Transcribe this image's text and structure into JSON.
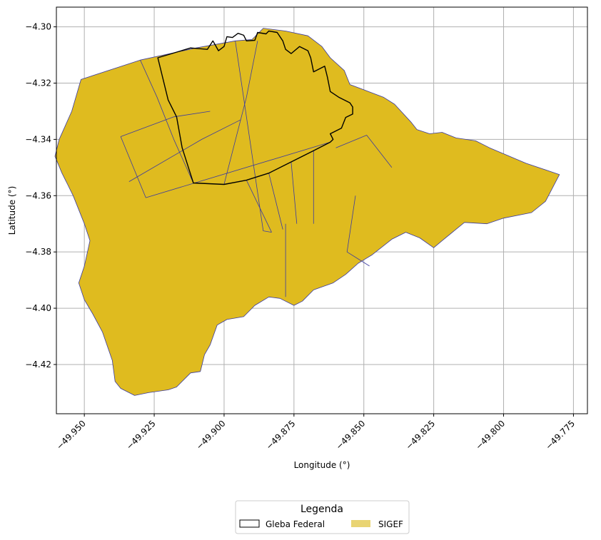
{
  "map": {
    "xlabel": "Longitude (°)",
    "ylabel": "Latitude (°)",
    "xlim": [
      -49.96,
      -49.77
    ],
    "ylim": [
      -4.4375,
      -4.293
    ],
    "xticks": [
      -49.95,
      -49.925,
      -49.9,
      -49.875,
      -49.85,
      -49.825,
      -49.8,
      -49.775
    ],
    "xtick_labels": [
      "−49.950",
      "−49.925",
      "−49.900",
      "−49.875",
      "−49.850",
      "−49.825",
      "−49.800",
      "−49.775"
    ],
    "yticks": [
      -4.3,
      -4.32,
      -4.34,
      -4.36,
      -4.38,
      -4.4,
      -4.42
    ],
    "ytick_labels": [
      "−4.30",
      "−4.32",
      "−4.34",
      "−4.36",
      "−4.38",
      "−4.40",
      "−4.42"
    ],
    "grid": true,
    "colors": {
      "sigef_fill": "#dfbb1f",
      "sigef_edge": "#3a3aa0",
      "gleba_edge": "#000000",
      "legend_sigef_swatch": "#e9d473"
    }
  },
  "legend": {
    "title": "Legenda",
    "placement": "bottom-center",
    "entries": [
      {
        "label": "Gleba Federal",
        "style": "outline"
      },
      {
        "label": "SIGEF",
        "style": "filled"
      }
    ]
  },
  "layers": {
    "sigef_boundary": [
      [
        -49.9512,
        -4.3187
      ],
      [
        -49.93,
        -4.3118
      ],
      [
        -49.91,
        -4.3075
      ],
      [
        -49.896,
        -4.305
      ],
      [
        -49.89,
        -4.3045
      ],
      [
        -49.886,
        -4.3005
      ],
      [
        -49.878,
        -4.3015
      ],
      [
        -49.87,
        -4.3032
      ],
      [
        -49.865,
        -4.307
      ],
      [
        -49.862,
        -4.311
      ],
      [
        -49.857,
        -4.3155
      ],
      [
        -49.855,
        -4.3205
      ],
      [
        -49.843,
        -4.325
      ],
      [
        -49.839,
        -4.3275
      ],
      [
        -49.833,
        -4.334
      ],
      [
        -49.831,
        -4.3365
      ],
      [
        -49.8265,
        -4.338
      ],
      [
        -49.822,
        -4.3375
      ],
      [
        -49.817,
        -4.3395
      ],
      [
        -49.81,
        -4.3405
      ],
      [
        -49.805,
        -4.343
      ],
      [
        -49.792,
        -4.3485
      ],
      [
        -49.78,
        -4.3525
      ],
      [
        -49.785,
        -4.362
      ],
      [
        -49.79,
        -4.366
      ],
      [
        -49.8,
        -4.368
      ],
      [
        -49.806,
        -4.37
      ],
      [
        -49.814,
        -4.3695
      ],
      [
        -49.822,
        -4.376
      ],
      [
        -49.825,
        -4.3785
      ],
      [
        -49.83,
        -4.375
      ],
      [
        -49.835,
        -4.373
      ],
      [
        -49.84,
        -4.3755
      ],
      [
        -49.847,
        -4.381
      ],
      [
        -49.852,
        -4.384
      ],
      [
        -49.8565,
        -4.388
      ],
      [
        -49.861,
        -4.391
      ],
      [
        -49.868,
        -4.3935
      ],
      [
        -49.872,
        -4.3975
      ],
      [
        -49.875,
        -4.399
      ],
      [
        -49.88,
        -4.3965
      ],
      [
        -49.884,
        -4.396
      ],
      [
        -49.889,
        -4.399
      ],
      [
        -49.893,
        -4.403
      ],
      [
        -49.899,
        -4.404
      ],
      [
        -49.9025,
        -4.406
      ],
      [
        -49.905,
        -4.413
      ],
      [
        -49.907,
        -4.4165
      ],
      [
        -49.9085,
        -4.4225
      ],
      [
        -49.912,
        -4.423
      ],
      [
        -49.917,
        -4.428
      ],
      [
        -49.92,
        -4.429
      ],
      [
        -49.927,
        -4.43
      ],
      [
        -49.932,
        -4.431
      ],
      [
        -49.937,
        -4.4285
      ],
      [
        -49.939,
        -4.426
      ],
      [
        -49.94,
        -4.4185
      ],
      [
        -49.9435,
        -4.4085
      ],
      [
        -49.947,
        -4.402
      ],
      [
        -49.95,
        -4.397
      ],
      [
        -49.952,
        -4.391
      ],
      [
        -49.95,
        -4.385
      ],
      [
        -49.948,
        -4.376
      ],
      [
        -49.95,
        -4.37
      ],
      [
        -49.954,
        -4.36
      ],
      [
        -49.956,
        -4.356
      ],
      [
        -49.958,
        -4.352
      ],
      [
        -49.9605,
        -4.346
      ],
      [
        -49.959,
        -4.34
      ],
      [
        -49.9545,
        -4.33
      ],
      [
        -49.9512,
        -4.3187
      ]
    ],
    "gleba_federal_outline": [
      [
        -49.9237,
        -4.311
      ],
      [
        -49.912,
        -4.3075
      ],
      [
        -49.906,
        -4.308
      ],
      [
        -49.904,
        -4.305
      ],
      [
        -49.902,
        -4.3085
      ],
      [
        -49.9,
        -4.307
      ],
      [
        -49.899,
        -4.3035
      ],
      [
        -49.897,
        -4.3038
      ],
      [
        -49.895,
        -4.3023
      ],
      [
        -49.893,
        -4.303
      ],
      [
        -49.892,
        -4.305
      ],
      [
        -49.889,
        -4.3048
      ],
      [
        -49.888,
        -4.302
      ],
      [
        -49.885,
        -4.3025
      ],
      [
        -49.884,
        -4.3015
      ],
      [
        -49.881,
        -4.302
      ],
      [
        -49.879,
        -4.305
      ],
      [
        -49.878,
        -4.308
      ],
      [
        -49.876,
        -4.3095
      ],
      [
        -49.873,
        -4.307
      ],
      [
        -49.87,
        -4.3085
      ],
      [
        -49.869,
        -4.311
      ],
      [
        -49.868,
        -4.316
      ],
      [
        -49.866,
        -4.315
      ],
      [
        -49.864,
        -4.314
      ],
      [
        -49.863,
        -4.318
      ],
      [
        -49.862,
        -4.323
      ],
      [
        -49.859,
        -4.325
      ],
      [
        -49.855,
        -4.327
      ],
      [
        -49.854,
        -4.3285
      ],
      [
        -49.854,
        -4.331
      ],
      [
        -49.8565,
        -4.3322
      ],
      [
        -49.858,
        -4.336
      ],
      [
        -49.862,
        -4.338
      ],
      [
        -49.861,
        -4.34
      ],
      [
        -49.862,
        -4.341
      ],
      [
        -49.868,
        -4.344
      ],
      [
        -49.876,
        -4.348
      ],
      [
        -49.884,
        -4.352
      ],
      [
        -49.892,
        -4.3545
      ],
      [
        -49.9,
        -4.356
      ],
      [
        -49.911,
        -4.3555
      ],
      [
        -49.915,
        -4.343
      ],
      [
        -49.917,
        -4.332
      ],
      [
        -49.92,
        -4.326
      ],
      [
        -49.9237,
        -4.311
      ]
    ],
    "internal_boundaries": [
      [
        [
          -49.93,
          -4.3118
        ],
        [
          -49.924,
          -4.325
        ],
        [
          -49.918,
          -4.34
        ],
        [
          -49.911,
          -4.3555
        ]
      ],
      [
        [
          -49.928,
          -4.3607
        ],
        [
          -49.862,
          -4.341
        ]
      ],
      [
        [
          -49.937,
          -4.339
        ],
        [
          -49.918,
          -4.332
        ],
        [
          -49.905,
          -4.33
        ]
      ],
      [
        [
          -49.937,
          -4.339
        ],
        [
          -49.928,
          -4.3607
        ]
      ],
      [
        [
          -49.934,
          -4.355
        ],
        [
          -49.908,
          -4.34
        ],
        [
          -49.894,
          -4.333
        ]
      ],
      [
        [
          -49.9,
          -4.356
        ],
        [
          -49.892,
          -4.325
        ],
        [
          -49.888,
          -4.305
        ]
      ],
      [
        [
          -49.896,
          -4.305
        ],
        [
          -49.886,
          -4.3725
        ],
        [
          -49.883,
          -4.373
        ]
      ],
      [
        [
          -49.892,
          -4.3545
        ],
        [
          -49.883,
          -4.373
        ]
      ],
      [
        [
          -49.884,
          -4.352
        ],
        [
          -49.879,
          -4.372
        ]
      ],
      [
        [
          -49.876,
          -4.348
        ],
        [
          -49.874,
          -4.37
        ]
      ],
      [
        [
          -49.868,
          -4.344
        ],
        [
          -49.868,
          -4.37
        ]
      ],
      [
        [
          -49.878,
          -4.37
        ],
        [
          -49.878,
          -4.396
        ]
      ],
      [
        [
          -49.86,
          -4.343
        ],
        [
          -49.849,
          -4.3385
        ],
        [
          -49.84,
          -4.35
        ]
      ],
      [
        [
          -49.853,
          -4.36
        ],
        [
          -49.856,
          -4.38
        ],
        [
          -49.848,
          -4.385
        ]
      ]
    ]
  }
}
